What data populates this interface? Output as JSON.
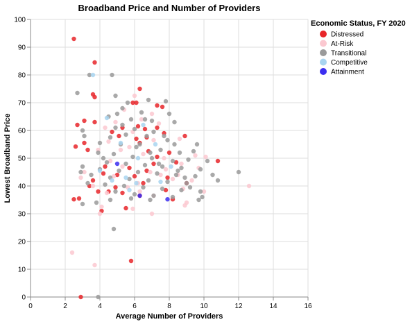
{
  "chart_data": {
    "type": "scatter",
    "title": "Broadband Price and Number of Providers",
    "xlabel": "Average Number of Providers",
    "ylabel": "Lowest Broadband Price",
    "xlim": [
      0,
      16
    ],
    "ylim": [
      0,
      100
    ],
    "x_ticks": [
      "0",
      "2",
      "4",
      "6",
      "8",
      "10",
      "12",
      "14",
      "16"
    ],
    "y_ticks": [
      "0",
      "10",
      "20",
      "30",
      "40",
      "50",
      "60",
      "70",
      "80",
      "90",
      "100"
    ],
    "grid": true,
    "legend": {
      "title": "Economic Status, FY 2020",
      "placement": "right"
    },
    "series": [
      {
        "name": "Distressed",
        "color": "#e8262a",
        "points": [
          [
            2.5,
            93
          ],
          [
            3.7,
            84.5
          ],
          [
            6.3,
            75
          ],
          [
            3.6,
            73
          ],
          [
            3.7,
            72
          ],
          [
            5.9,
            70
          ],
          [
            6.1,
            70
          ],
          [
            7.3,
            69
          ],
          [
            7.6,
            68.5
          ],
          [
            3.1,
            63.5
          ],
          [
            3.7,
            63
          ],
          [
            2.7,
            62
          ],
          [
            5.3,
            61
          ],
          [
            6.2,
            61.5
          ],
          [
            6.6,
            60.5
          ],
          [
            7.3,
            61
          ],
          [
            4.7,
            59.5
          ],
          [
            5.1,
            58
          ],
          [
            6.1,
            57
          ],
          [
            6.7,
            57.5
          ],
          [
            7.7,
            59
          ],
          [
            8.9,
            58
          ],
          [
            6.3,
            55.5
          ],
          [
            3.1,
            55.5
          ],
          [
            2.6,
            54.2
          ],
          [
            3.3,
            53
          ],
          [
            6.8,
            52.5
          ],
          [
            8.0,
            52
          ],
          [
            7.3,
            50.5
          ],
          [
            10.8,
            49
          ],
          [
            7.1,
            48
          ],
          [
            8.4,
            48.5
          ],
          [
            4.3,
            47
          ],
          [
            5.7,
            46.5
          ],
          [
            6.7,
            45.5
          ],
          [
            4.2,
            44.5
          ],
          [
            5.0,
            44
          ],
          [
            6.0,
            43.5
          ],
          [
            7.9,
            43
          ],
          [
            3.6,
            42
          ],
          [
            3.4,
            40
          ],
          [
            4.9,
            39.5
          ],
          [
            6.5,
            41
          ],
          [
            9.0,
            41
          ],
          [
            3.9,
            38
          ],
          [
            4.5,
            38
          ],
          [
            5.3,
            37.5
          ],
          [
            7.8,
            38.5
          ],
          [
            6.3,
            36.5
          ],
          [
            8.2,
            35.2
          ],
          [
            2.5,
            35.2
          ],
          [
            2.8,
            35.5
          ],
          [
            4.1,
            31
          ],
          [
            5.5,
            32
          ],
          [
            5.8,
            13
          ],
          [
            2.9,
            0
          ]
        ]
      },
      {
        "name": "At-Risk",
        "color": "#fbc8d0",
        "points": [
          [
            6.0,
            72.5
          ],
          [
            5.4,
            67.5
          ],
          [
            7.0,
            66
          ],
          [
            4.9,
            63
          ],
          [
            6.4,
            64
          ],
          [
            7.4,
            62.5
          ],
          [
            4.3,
            61
          ],
          [
            5.9,
            59.5
          ],
          [
            8.6,
            57
          ],
          [
            7.1,
            56.5
          ],
          [
            5.7,
            54
          ],
          [
            3.9,
            53
          ],
          [
            6.5,
            51.5
          ],
          [
            9.5,
            51
          ],
          [
            7.7,
            50
          ],
          [
            10.1,
            50.5
          ],
          [
            4.6,
            49
          ],
          [
            8.7,
            48
          ],
          [
            5.3,
            47
          ],
          [
            9.7,
            46.5
          ],
          [
            3.1,
            45
          ],
          [
            6.9,
            45
          ],
          [
            7.5,
            44
          ],
          [
            4.8,
            43.5
          ],
          [
            2.9,
            43
          ],
          [
            8.2,
            42.5
          ],
          [
            9.3,
            42
          ],
          [
            6.2,
            41
          ],
          [
            12.6,
            40
          ],
          [
            3.6,
            40
          ],
          [
            5.6,
            39.5
          ],
          [
            8.8,
            39
          ],
          [
            10.0,
            38
          ],
          [
            4.4,
            37.5
          ],
          [
            7.1,
            36.5
          ],
          [
            9.0,
            34
          ],
          [
            8.9,
            33
          ],
          [
            4.1,
            32.5
          ],
          [
            5.9,
            31.8
          ],
          [
            4.0,
            30
          ],
          [
            7.0,
            30
          ],
          [
            2.4,
            16
          ],
          [
            3.7,
            11.5
          ],
          [
            8.5,
            44
          ],
          [
            6.3,
            38
          ],
          [
            7.8,
            46
          ],
          [
            4.5,
            56
          ],
          [
            5.2,
            53
          ]
        ]
      },
      {
        "name": "Transitional",
        "color": "#9a9a9a",
        "points": [
          [
            2.7,
            73.5
          ],
          [
            3.4,
            80
          ],
          [
            4.7,
            80
          ],
          [
            4.9,
            72.5
          ],
          [
            5.6,
            70
          ],
          [
            6.8,
            71
          ],
          [
            7.8,
            70.5
          ],
          [
            5.3,
            68
          ],
          [
            6.4,
            66.5
          ],
          [
            8.0,
            66
          ],
          [
            4.5,
            65
          ],
          [
            5.8,
            64
          ],
          [
            7.0,
            63.5
          ],
          [
            8.3,
            63
          ],
          [
            4.9,
            61
          ],
          [
            6.0,
            60.5
          ],
          [
            7.1,
            59.5
          ],
          [
            3.0,
            60
          ],
          [
            3.1,
            58
          ],
          [
            4.6,
            57.5
          ],
          [
            5.5,
            58.5
          ],
          [
            6.7,
            58
          ],
          [
            7.9,
            56.5
          ],
          [
            8.3,
            55
          ],
          [
            9.6,
            55
          ],
          [
            4.0,
            55.5
          ],
          [
            5.2,
            55
          ],
          [
            6.1,
            54
          ],
          [
            7.5,
            53
          ],
          [
            8.6,
            52
          ],
          [
            9.4,
            52.5
          ],
          [
            3.9,
            52
          ],
          [
            4.8,
            51.5
          ],
          [
            5.9,
            50.5
          ],
          [
            7.0,
            50
          ],
          [
            8.2,
            49
          ],
          [
            9.1,
            49.5
          ],
          [
            10.2,
            49
          ],
          [
            4.4,
            48.5
          ],
          [
            5.5,
            48
          ],
          [
            6.6,
            47.5
          ],
          [
            7.6,
            47
          ],
          [
            8.7,
            46.5
          ],
          [
            9.8,
            46
          ],
          [
            3.0,
            47
          ],
          [
            4.0,
            46
          ],
          [
            5.1,
            45.5
          ],
          [
            6.2,
            45
          ],
          [
            7.3,
            44.5
          ],
          [
            8.4,
            44
          ],
          [
            9.5,
            43.5
          ],
          [
            12.0,
            45
          ],
          [
            2.9,
            45
          ],
          [
            3.5,
            44
          ],
          [
            4.6,
            43
          ],
          [
            5.7,
            42.5
          ],
          [
            6.8,
            42
          ],
          [
            7.9,
            41.5
          ],
          [
            9.0,
            41
          ],
          [
            10.8,
            42
          ],
          [
            3.3,
            41
          ],
          [
            4.3,
            40.5
          ],
          [
            5.4,
            40
          ],
          [
            6.5,
            39.5
          ],
          [
            7.6,
            39
          ],
          [
            8.7,
            38.5
          ],
          [
            9.8,
            38
          ],
          [
            4.9,
            38
          ],
          [
            6.0,
            37
          ],
          [
            7.1,
            36.5
          ],
          [
            8.2,
            36
          ],
          [
            9.9,
            36
          ],
          [
            3.0,
            33.5
          ],
          [
            3.8,
            34
          ],
          [
            4.6,
            35
          ],
          [
            5.8,
            35.5
          ],
          [
            6.9,
            35
          ],
          [
            9.7,
            35
          ],
          [
            4.8,
            24.5
          ],
          [
            3.9,
            0
          ],
          [
            6.3,
            55
          ],
          [
            5.0,
            66
          ],
          [
            7.4,
            48
          ],
          [
            8.9,
            43
          ],
          [
            6.6,
            64
          ],
          [
            4.2,
            50
          ],
          [
            5.3,
            62
          ],
          [
            7.7,
            58
          ],
          [
            6.9,
            52
          ],
          [
            8.5,
            45.5
          ],
          [
            9.2,
            39.5
          ],
          [
            10.5,
            44
          ]
        ]
      },
      {
        "name": "Competitive",
        "color": "#a8d5f0",
        "points": [
          [
            3.6,
            80
          ],
          [
            4.4,
            64.5
          ],
          [
            6.5,
            62
          ],
          [
            5.2,
            55.5
          ],
          [
            7.2,
            55
          ],
          [
            6.2,
            50
          ],
          [
            4.0,
            45.5
          ],
          [
            5.5,
            43
          ],
          [
            7.5,
            41.5
          ],
          [
            6.1,
            41
          ],
          [
            5.7,
            38.5
          ],
          [
            4.7,
            42
          ],
          [
            8.1,
            47
          ]
        ]
      },
      {
        "name": "Attainment",
        "color": "#3b2ef0",
        "points": [
          [
            5.0,
            48
          ],
          [
            6.3,
            36.5
          ],
          [
            7.9,
            35.2
          ]
        ]
      }
    ]
  }
}
